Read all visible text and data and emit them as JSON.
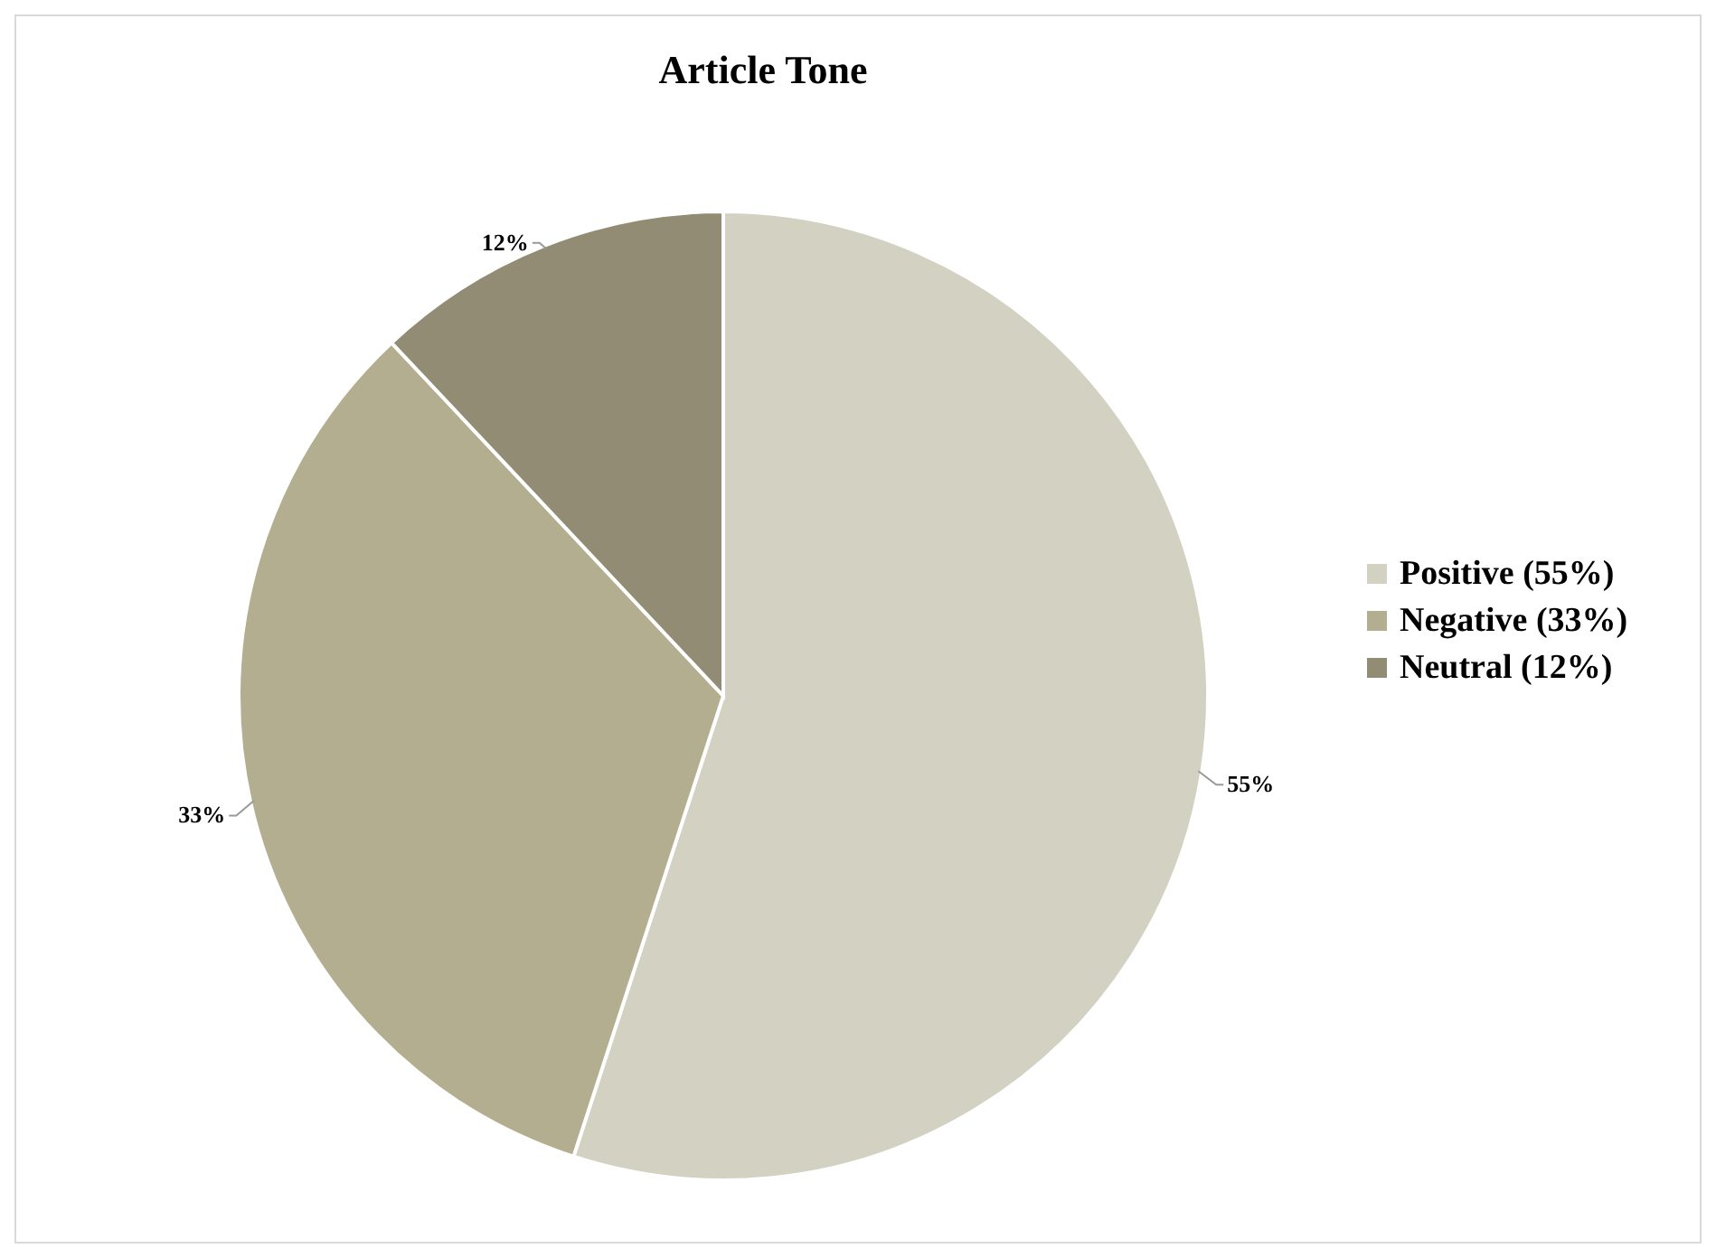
{
  "chart_data": {
    "type": "pie",
    "title": "Article Tone",
    "categories": [
      "Positive (55%)",
      "Negative (33%)",
      "Neutral (12%)"
    ],
    "values": [
      55,
      33,
      12
    ],
    "colors": [
      "#d3d2c2",
      "#b3ae8f",
      "#918c73"
    ],
    "value_labels": [
      "55%",
      "33%",
      "12%"
    ],
    "legend": "right"
  }
}
